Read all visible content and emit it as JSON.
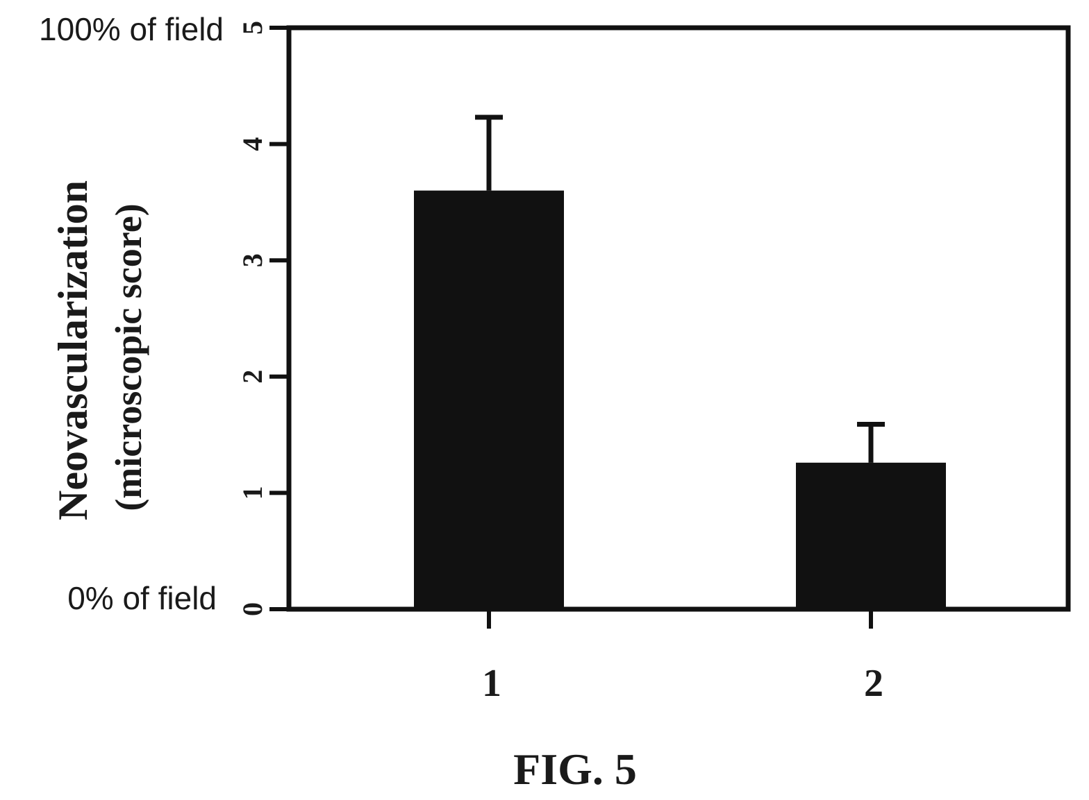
{
  "figure_caption": "FIG. 5",
  "chart_data": {
    "type": "bar",
    "title": "",
    "categories": [
      "1",
      "2"
    ],
    "series": [
      {
        "values": [
          3.6,
          1.26
        ],
        "error": [
          0.63,
          0.33
        ]
      }
    ],
    "ylabel": "Neovascularization",
    "ylabel_sub": "(microscopic score)",
    "xlabel": "",
    "ylim": [
      0,
      5
    ],
    "yticks": [
      "0",
      "1",
      "2",
      "3",
      "4",
      "5"
    ],
    "y_extreme_labels": {
      "top": "100% of field",
      "bottom": "0% of field"
    },
    "grid": false,
    "legend": "none",
    "colors": {
      "bar": "#111111",
      "axis": "#111111",
      "text": "#1a1a1a"
    }
  }
}
